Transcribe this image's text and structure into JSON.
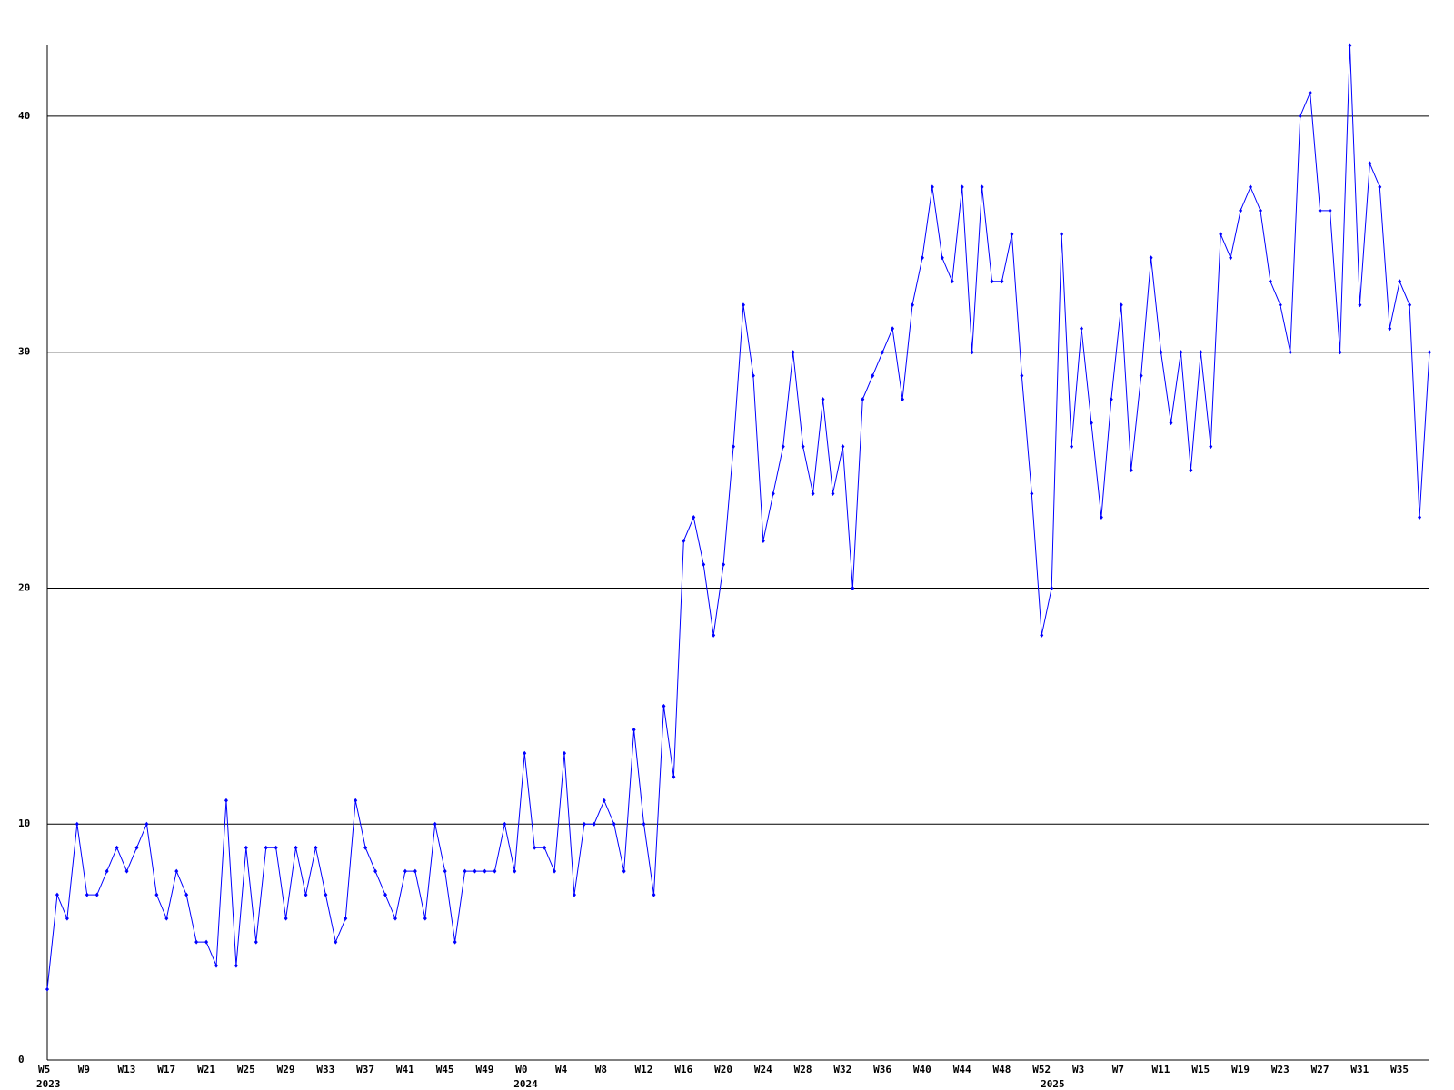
{
  "chart_data": {
    "type": "line",
    "categories": [
      "W5",
      null,
      null,
      null,
      "W9",
      null,
      null,
      null,
      "W13",
      null,
      null,
      null,
      "W17",
      null,
      null,
      null,
      "W21",
      null,
      null,
      null,
      "W25",
      null,
      null,
      null,
      "W29",
      null,
      null,
      null,
      "W33",
      null,
      null,
      null,
      "W37",
      null,
      null,
      null,
      "W41",
      null,
      null,
      null,
      "W45",
      null,
      null,
      null,
      "W49",
      null,
      null,
      null,
      "W0",
      null,
      null,
      null,
      "W4",
      null,
      null,
      null,
      "W8",
      null,
      null,
      null,
      "W12",
      null,
      null,
      null,
      "W16",
      null,
      null,
      null,
      "W20",
      null,
      null,
      null,
      "W24",
      null,
      null,
      null,
      "W28",
      null,
      null,
      null,
      "W32",
      null,
      null,
      null,
      "W36",
      null,
      null,
      null,
      "W40",
      null,
      null,
      null,
      "W44",
      null,
      null,
      null,
      "W48",
      null,
      null,
      null,
      "W52",
      null,
      null,
      null,
      "W3",
      null,
      null,
      null,
      "W7",
      null,
      null,
      null,
      "W11",
      null,
      null,
      null,
      "W15",
      null,
      null,
      null,
      "W19",
      null,
      null,
      null,
      "W23",
      null,
      null,
      null,
      "W27",
      null,
      null,
      null,
      "W31",
      null,
      null,
      null,
      "W35",
      null,
      null,
      null
    ],
    "years": [
      {
        "label": "2023",
        "at": 0
      },
      {
        "label": "2024",
        "at": 48
      },
      {
        "label": "2025",
        "at": 101
      }
    ],
    "series": [
      {
        "color": "#0000ff",
        "values": [
          3,
          7,
          6,
          10,
          7,
          7,
          8,
          9,
          8,
          9,
          10,
          7,
          6,
          8,
          7,
          5,
          5,
          4,
          11,
          4,
          9,
          5,
          9,
          9,
          6,
          9,
          7,
          9,
          7,
          5,
          6,
          11,
          9,
          8,
          7,
          6,
          8,
          8,
          6,
          10,
          8,
          5,
          8,
          8,
          8,
          8,
          10,
          8,
          13,
          9,
          9,
          8,
          13,
          7,
          10,
          10,
          11,
          10,
          8,
          14,
          10,
          7,
          15,
          12,
          22,
          23,
          21,
          18,
          21,
          26,
          32,
          29,
          22,
          24,
          26,
          30,
          26,
          24,
          28,
          24,
          26,
          20,
          28,
          29,
          30,
          31,
          28,
          32,
          34,
          37,
          34,
          33,
          37,
          30,
          37,
          33,
          33,
          35,
          29,
          24,
          18,
          20,
          35,
          26,
          31,
          27,
          23,
          28,
          32,
          25,
          29,
          34,
          30,
          27,
          30,
          25,
          30,
          26,
          35,
          34,
          36,
          37,
          36,
          33,
          32,
          30,
          40,
          41,
          36,
          36,
          30,
          43,
          32,
          38,
          37,
          31,
          33,
          32,
          23,
          30
        ]
      }
    ],
    "ylim": [
      0,
      43
    ],
    "yticks": [
      0,
      10,
      20,
      30,
      40
    ],
    "grid": true
  }
}
